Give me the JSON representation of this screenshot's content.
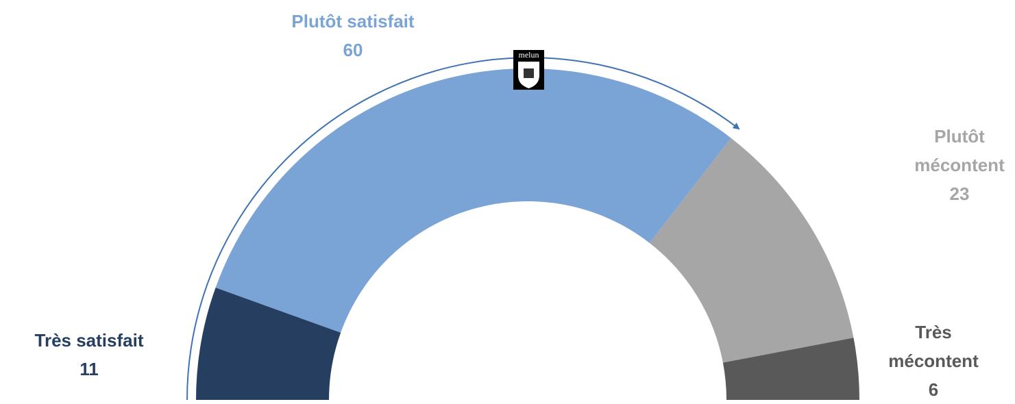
{
  "chart_data": {
    "type": "pie",
    "categories": [
      "Très satisfait",
      "Plutôt satisfait",
      "Plutôt mécontent",
      "Très mécontent"
    ],
    "values": [
      11,
      60,
      23,
      6
    ],
    "colors": [
      "#263f60",
      "#7aa3d6",
      "#a6a6a6",
      "#595959"
    ],
    "logo": "melun"
  }
}
